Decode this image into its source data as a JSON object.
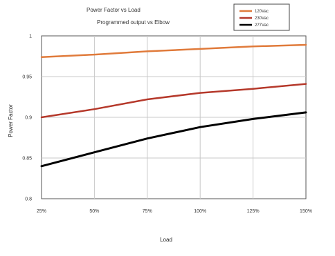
{
  "chart_data": {
    "type": "line",
    "title": "Power Factor vs Load",
    "subtitle": "Programmed output vs Elbow",
    "xlabel": "Load",
    "ylabel": "Power Factor",
    "x": [
      "25%",
      "50%",
      "75%",
      "100%",
      "125%",
      "150%"
    ],
    "yticks": [
      "0.8",
      "0.85",
      "0.9",
      "0.95",
      "1"
    ],
    "ylim": [
      0.8,
      1.0
    ],
    "grid": true,
    "legend_position": "top-right",
    "series": [
      {
        "name": "120Vac",
        "color": "#e07a3a",
        "values": [
          0.974,
          0.977,
          0.981,
          0.984,
          0.987,
          0.989
        ]
      },
      {
        "name": "230Vac",
        "color": "#b5382a",
        "values": [
          0.9,
          0.91,
          0.922,
          0.93,
          0.935,
          0.941
        ]
      },
      {
        "name": "277Vac",
        "color": "#000000",
        "values": [
          0.84,
          0.857,
          0.874,
          0.888,
          0.898,
          0.906
        ]
      }
    ]
  }
}
